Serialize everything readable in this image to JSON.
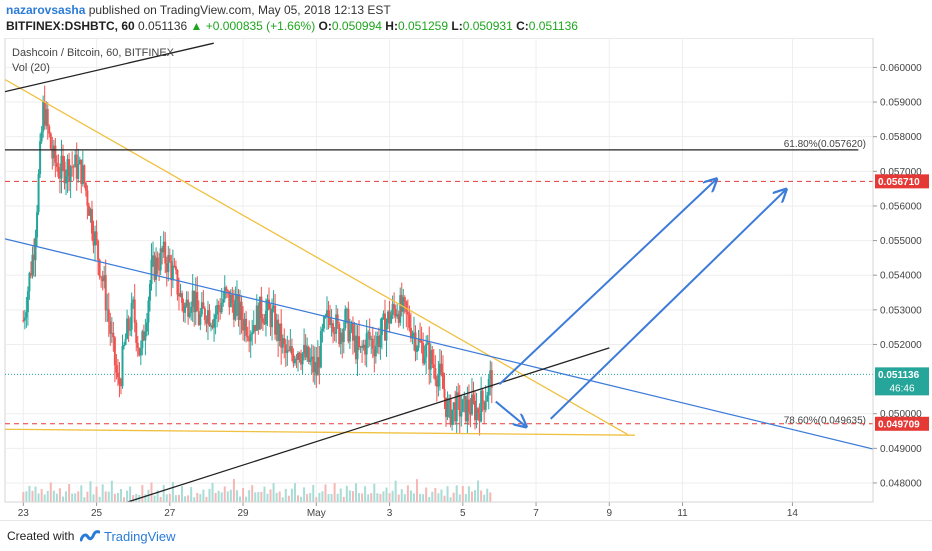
{
  "header": {
    "author": "nazarovsasha",
    "published": "published on TradingView.com, May 05, 2018 12:13 EST",
    "symbol": "BITFINEX:DSHBTC, 60",
    "price": "0.051136",
    "change": "+0.000835 (+1.66%)",
    "o_label": "O:",
    "o": "0.050994",
    "h_label": "H:",
    "h": "0.051259",
    "l_label": "L:",
    "l": "0.050931",
    "c_label": "C:",
    "c": "0.051136"
  },
  "footer": {
    "created_with": "Created with",
    "brand": "TradingView"
  },
  "chart_data": {
    "type": "candlestick",
    "title": "Dashcoin / Bitcoin, 60, BITFINEX",
    "volume_label": "Vol (20)",
    "y_ticks": [
      "0.060000",
      "0.059000",
      "0.058000",
      "0.057000",
      "0.056000",
      "0.055000",
      "0.054000",
      "0.053000",
      "0.052000",
      "0.050000",
      "0.049000",
      "0.048000"
    ],
    "y_range": [
      0.04745,
      0.06085
    ],
    "x_ticks": [
      {
        "label": "23",
        "t": 0
      },
      {
        "label": "25",
        "t": 2
      },
      {
        "label": "27",
        "t": 4
      },
      {
        "label": "29",
        "t": 6
      },
      {
        "label": "May",
        "t": 8
      },
      {
        "label": "3",
        "t": 10
      },
      {
        "label": "5",
        "t": 12
      },
      {
        "label": "7",
        "t": 14
      },
      {
        "label": "9",
        "t": 16
      },
      {
        "label": "11",
        "t": 18
      },
      {
        "label": "14",
        "t": 21
      }
    ],
    "current_price": {
      "value": 0.051136,
      "label": "0.051136",
      "countdown": "46:46",
      "color": "#26a69a"
    },
    "levels": [
      {
        "name": "red-level-upper",
        "value": 0.05671,
        "label": "0.056710",
        "color": "#e53935"
      },
      {
        "name": "red-level-lower",
        "value": 0.049709,
        "label": "0.049709",
        "color": "#e53935"
      }
    ],
    "fib_levels": [
      {
        "value": 0.05762,
        "label": "61.80%(0.057620)"
      },
      {
        "value": 0.049635,
        "label": "78.60%(0.049635)"
      }
    ],
    "path": [
      [
        0.0,
        0.0527
      ],
      [
        0.3,
        0.0549
      ],
      [
        0.55,
        0.0589
      ],
      [
        0.8,
        0.0574
      ],
      [
        1.0,
        0.057
      ],
      [
        1.3,
        0.0572
      ],
      [
        1.6,
        0.057
      ],
      [
        1.8,
        0.056
      ],
      [
        2.0,
        0.0548
      ],
      [
        2.2,
        0.0537
      ],
      [
        2.4,
        0.0522
      ],
      [
        2.6,
        0.0507
      ],
      [
        2.8,
        0.0522
      ],
      [
        3.0,
        0.053
      ],
      [
        3.2,
        0.0516
      ],
      [
        3.5,
        0.0541
      ],
      [
        3.8,
        0.0546
      ],
      [
        4.0,
        0.0543
      ],
      [
        4.2,
        0.0537
      ],
      [
        4.4,
        0.053
      ],
      [
        4.6,
        0.0535
      ],
      [
        4.8,
        0.0527
      ],
      [
        5.0,
        0.053
      ],
      [
        5.2,
        0.0528
      ],
      [
        5.5,
        0.0534
      ],
      [
        5.8,
        0.0531
      ],
      [
        6.0,
        0.0527
      ],
      [
        6.2,
        0.0525
      ],
      [
        6.5,
        0.053
      ],
      [
        6.8,
        0.0528
      ],
      [
        7.0,
        0.0522
      ],
      [
        7.2,
        0.0516
      ],
      [
        7.5,
        0.0519
      ],
      [
        7.8,
        0.0515
      ],
      [
        8.0,
        0.0512
      ],
      [
        8.2,
        0.0524
      ],
      [
        8.4,
        0.053
      ],
      [
        8.6,
        0.0523
      ],
      [
        8.8,
        0.0527
      ],
      [
        9.0,
        0.0521
      ],
      [
        9.2,
        0.0517
      ],
      [
        9.4,
        0.0522
      ],
      [
        9.6,
        0.052
      ],
      [
        9.8,
        0.0524
      ],
      [
        10.0,
        0.0528
      ],
      [
        10.2,
        0.0531
      ],
      [
        10.4,
        0.0529
      ],
      [
        10.6,
        0.0525
      ],
      [
        10.8,
        0.052
      ],
      [
        11.0,
        0.0518
      ],
      [
        11.2,
        0.0514
      ],
      [
        11.4,
        0.051
      ],
      [
        11.6,
        0.05
      ],
      [
        11.8,
        0.0502
      ],
      [
        12.0,
        0.0501
      ],
      [
        12.2,
        0.0502
      ],
      [
        12.4,
        0.0501
      ],
      [
        12.6,
        0.0505
      ],
      [
        12.8,
        0.051136
      ]
    ],
    "volume_pattern": [
      2,
      4,
      8,
      3,
      5,
      2,
      6,
      3,
      4,
      9,
      3,
      2,
      5,
      2,
      3,
      7,
      2,
      4,
      3,
      6
    ],
    "lines": [
      {
        "name": "yellow-descending-trendline",
        "color": "#f0c040",
        "from": {
          "t": -0.5,
          "v": 0.05965
        },
        "to": {
          "t": 16.5,
          "v": 0.0494
        }
      },
      {
        "name": "yellow-horizontal-support",
        "color": "#f0c040",
        "from": {
          "t": -0.5,
          "v": 0.04955
        },
        "to": {
          "t": 16.7,
          "v": 0.04938
        }
      },
      {
        "name": "blue-trendline",
        "color": "#3d7bd9",
        "from": {
          "t": -0.5,
          "v": 0.05505
        },
        "to": {
          "t": 23.2,
          "v": 0.04898
        }
      },
      {
        "name": "black-rising-trendline",
        "color": "#222222",
        "from": {
          "t": 2.7,
          "v": 0.0474
        },
        "to": {
          "t": 16.0,
          "v": 0.0519
        }
      },
      {
        "name": "black-rising-trendline-upper",
        "color": "#222222",
        "from": {
          "t": -0.5,
          "v": 0.0593
        },
        "to": {
          "t": 5.2,
          "v": 0.0607
        }
      },
      {
        "name": "black-horizontal-level",
        "color": "#222222",
        "from": {
          "t": -0.5,
          "v": 0.05762
        },
        "to": {
          "t": 22.8,
          "v": 0.05762
        }
      }
    ],
    "arrows": [
      {
        "name": "small-down-arrow",
        "color": "#3d7bd9",
        "from": {
          "t": 12.9,
          "v": 0.05035
        },
        "to": {
          "t": 13.7,
          "v": 0.04965
        }
      },
      {
        "name": "large-up-arrow-1",
        "color": "#3d7bd9",
        "from": {
          "t": 13.0,
          "v": 0.05085
        },
        "to": {
          "t": 18.9,
          "v": 0.05675
        }
      },
      {
        "name": "large-up-arrow-2",
        "color": "#3d7bd9",
        "from": {
          "t": 14.4,
          "v": 0.04985
        },
        "to": {
          "t": 20.8,
          "v": 0.05645
        }
      }
    ]
  }
}
